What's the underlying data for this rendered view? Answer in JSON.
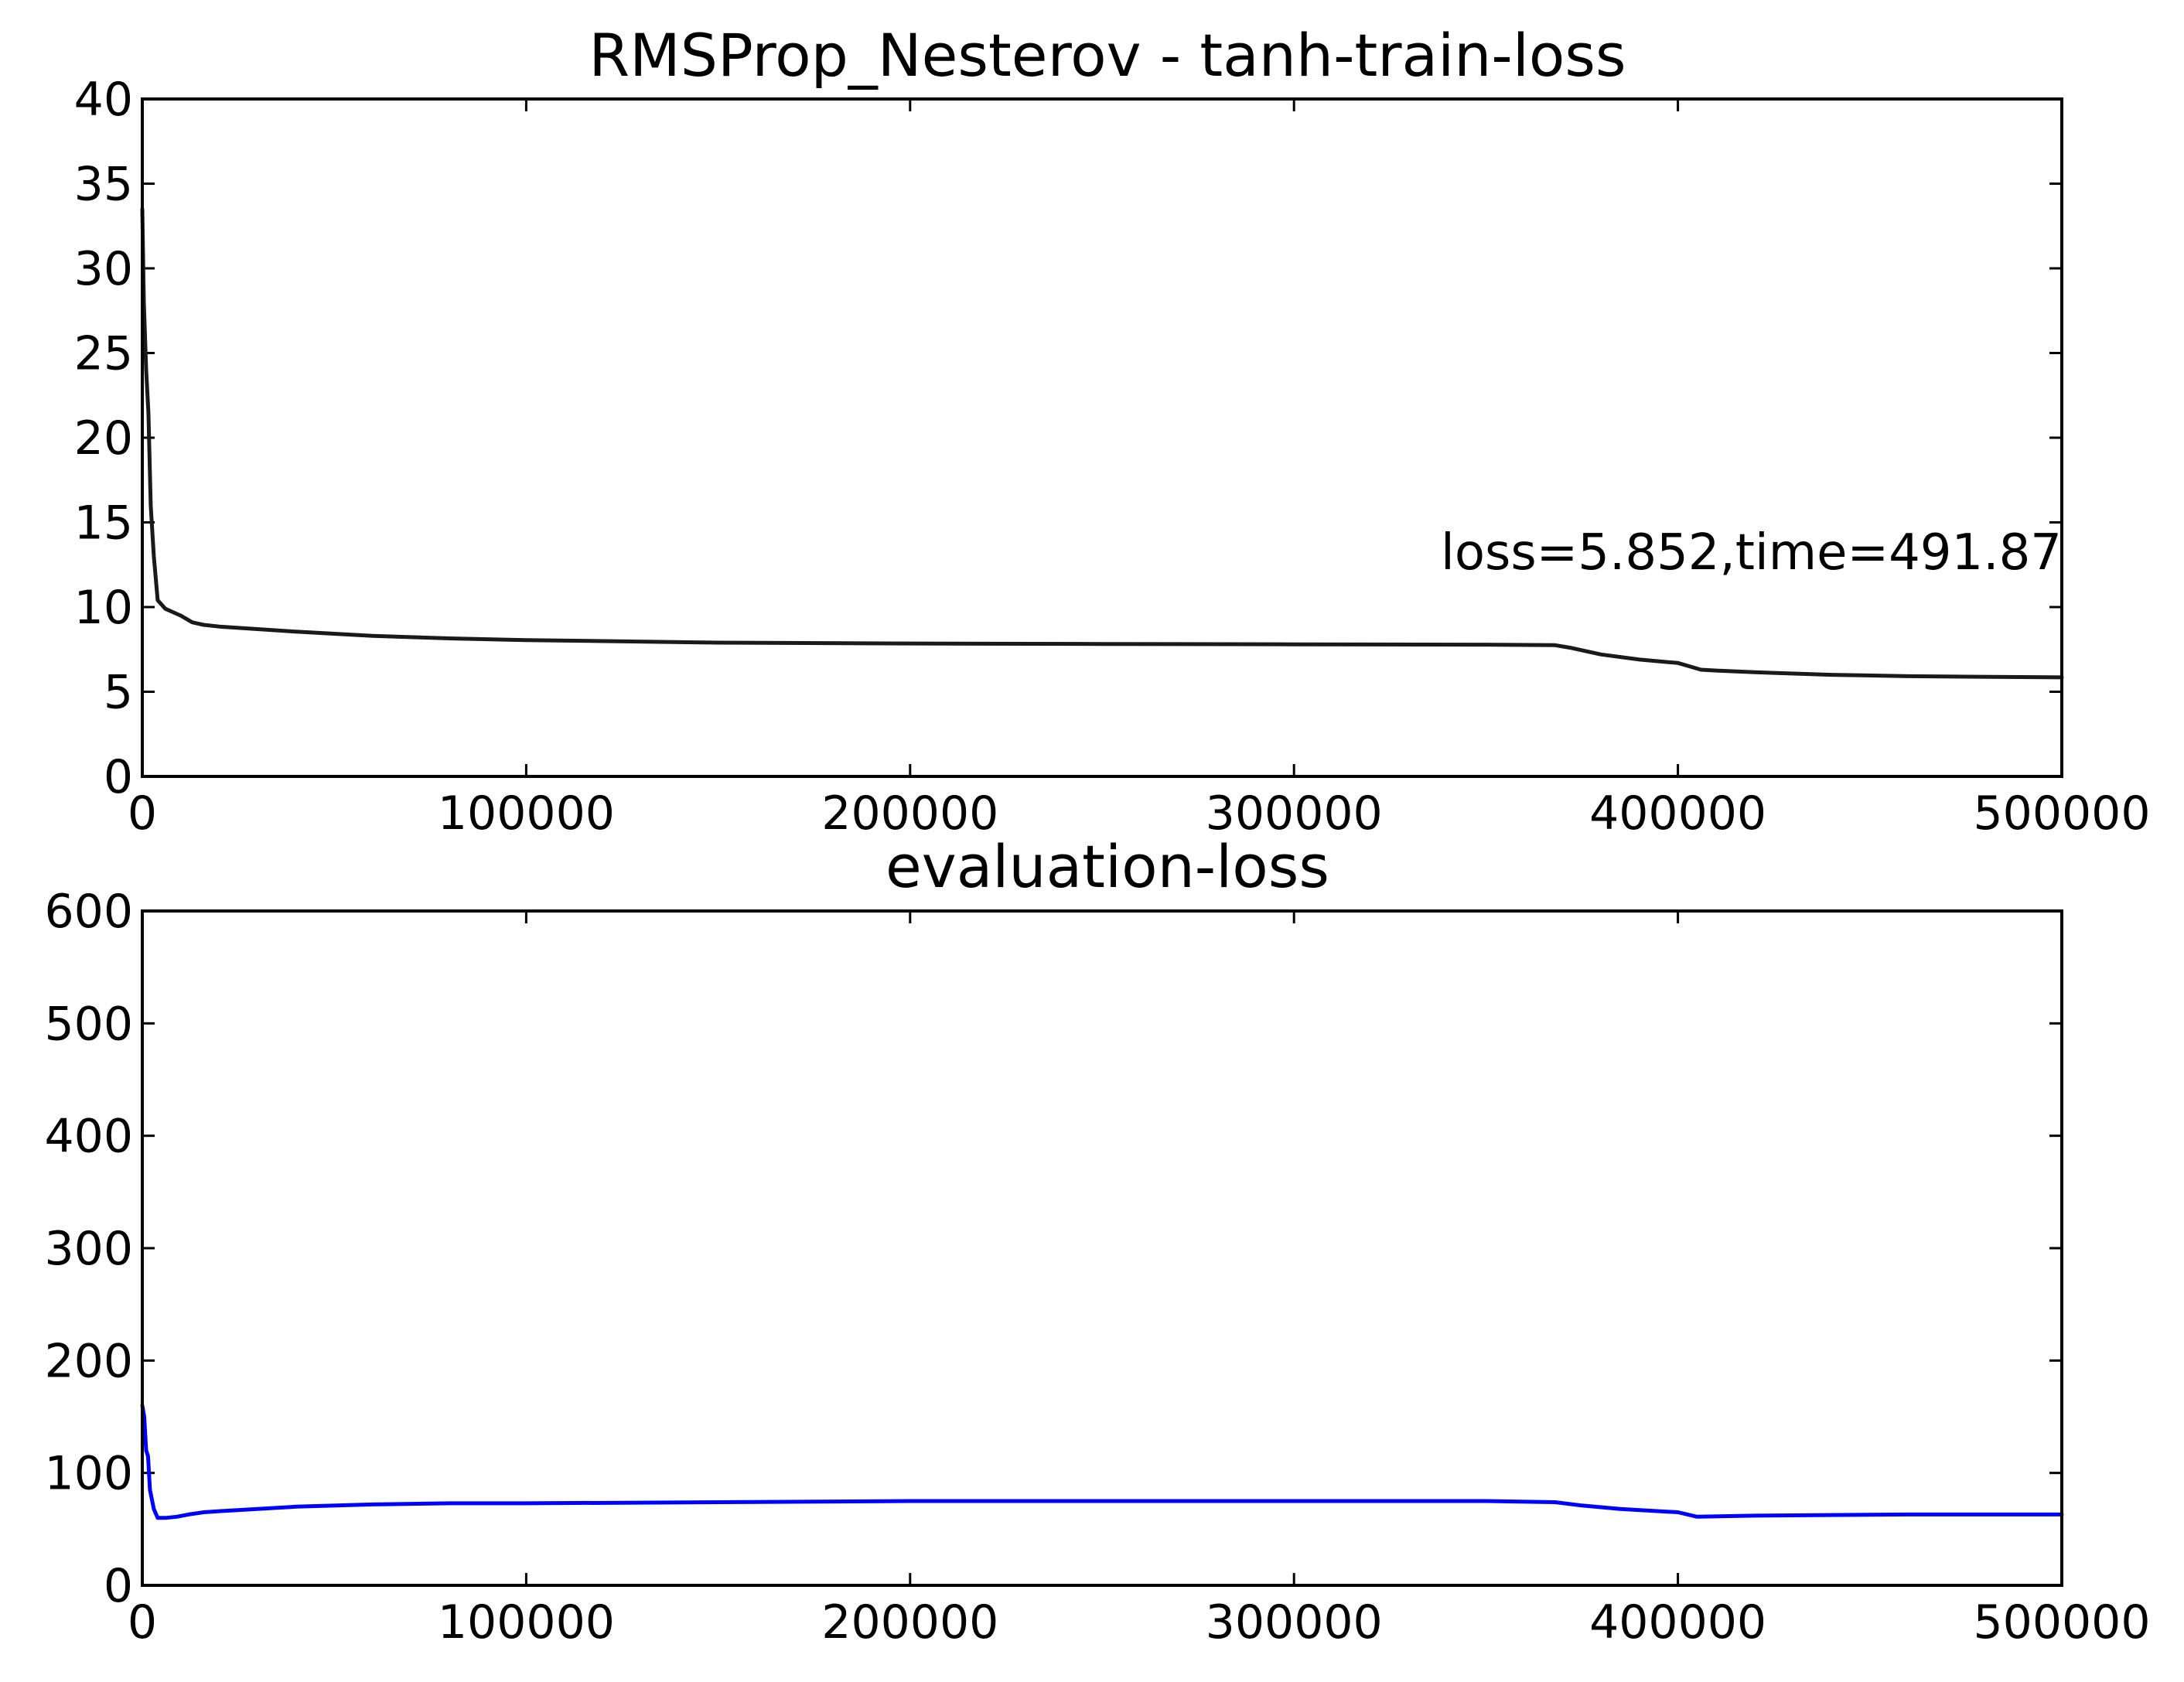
{
  "chart_data": [
    {
      "type": "line",
      "title": "RMSProp_Nesterov - tanh-train-loss",
      "xlim": [
        0,
        500000
      ],
      "ylim": [
        0,
        40
      ],
      "x_ticks": [
        "0",
        "100000",
        "200000",
        "300000",
        "400000",
        "500000"
      ],
      "y_ticks": [
        "0",
        "5",
        "10",
        "15",
        "20",
        "25",
        "30",
        "35",
        "40"
      ],
      "grid": false,
      "annotation": "loss=5.852,time=491.87",
      "series": [
        {
          "color": "#1a1a1a",
          "x": [
            0,
            400,
            1000,
            1600,
            2200,
            3000,
            4000,
            6000,
            8000,
            10000,
            13000,
            16000,
            20000,
            30000,
            40000,
            60000,
            80000,
            100000,
            150000,
            200000,
            250000,
            300000,
            350000,
            368000,
            372000,
            380000,
            390000,
            400000,
            403000,
            406000,
            410000,
            420000,
            440000,
            460000,
            500000
          ],
          "y": [
            33.5,
            28.0,
            24.0,
            21.5,
            16.0,
            13.0,
            10.4,
            9.9,
            9.7,
            9.5,
            9.1,
            8.95,
            8.85,
            8.7,
            8.55,
            8.3,
            8.15,
            8.05,
            7.9,
            7.85,
            7.82,
            7.8,
            7.78,
            7.75,
            7.6,
            7.2,
            6.9,
            6.7,
            6.5,
            6.3,
            6.25,
            6.15,
            6.0,
            5.92,
            5.85
          ]
        }
      ]
    },
    {
      "type": "line",
      "title": "evaluation-loss",
      "xlim": [
        0,
        500000
      ],
      "ylim": [
        0,
        600
      ],
      "x_ticks": [
        "0",
        "100000",
        "200000",
        "300000",
        "400000",
        "500000"
      ],
      "y_ticks": [
        "0",
        "100",
        "200",
        "300",
        "400",
        "500",
        "600"
      ],
      "grid": false,
      "series": [
        {
          "color": "#0000ff",
          "x": [
            0,
            500,
            1000,
            1500,
            2000,
            3000,
            4000,
            6000,
            9000,
            12000,
            16000,
            20000,
            30000,
            40000,
            60000,
            80000,
            100000,
            150000,
            200000,
            250000,
            300000,
            350000,
            368000,
            375000,
            385000,
            400000,
            405000,
            420000,
            460000,
            500000
          ],
          "y": [
            160,
            150,
            120,
            115,
            85,
            68,
            60,
            60,
            61,
            63,
            65,
            66,
            68,
            70,
            72,
            73,
            73,
            74,
            75,
            75,
            75,
            75,
            74,
            71,
            68,
            65,
            61,
            62,
            63,
            63
          ]
        }
      ]
    }
  ]
}
